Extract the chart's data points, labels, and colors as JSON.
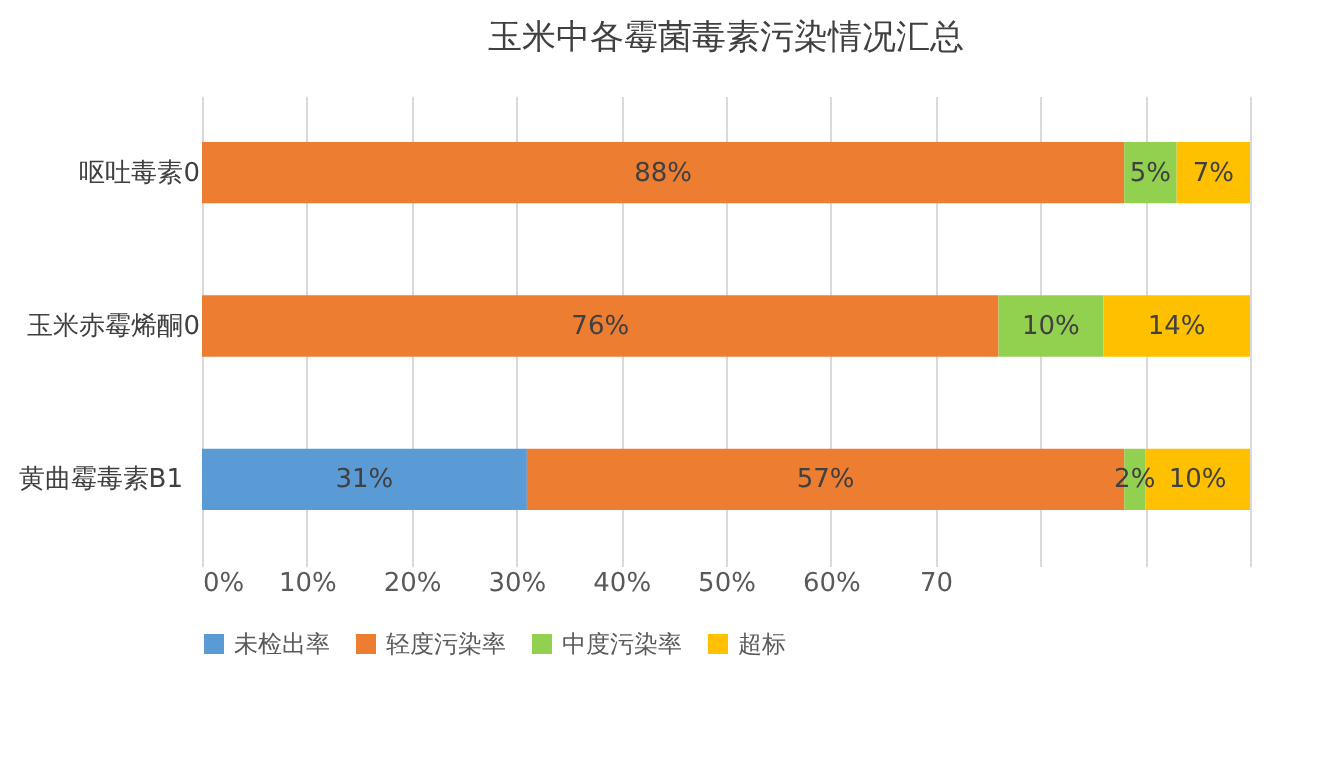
{
  "chart_data": {
    "type": "bar",
    "orientation": "horizontal",
    "stacked": true,
    "title": "玉米中各霉菌毒素污染情况汇总",
    "categories": [
      "呕吐毒素",
      "玉米赤霉烯酮",
      "黄曲霉毒素B1"
    ],
    "series": [
      {
        "name": "未检出率",
        "color": "#5b9bd5",
        "values": [
          0,
          0,
          31
        ],
        "value_labels": [
          null,
          null,
          "31%"
        ]
      },
      {
        "name": "轻度污染率",
        "color": "#ed7d31",
        "values": [
          88,
          76,
          57
        ],
        "value_labels": [
          "88%",
          "76%",
          "57%"
        ]
      },
      {
        "name": "中度污染率",
        "color": "#92d050",
        "values": [
          5,
          10,
          2
        ],
        "value_labels": [
          "5%",
          "10%",
          "2%"
        ]
      },
      {
        "name": "超标",
        "color": "#ffc000",
        "values": [
          7,
          14,
          10
        ],
        "value_labels": [
          "7%",
          "14%",
          "10%"
        ]
      }
    ],
    "xlim": [
      0,
      100
    ],
    "xticks": [
      {
        "value": 0,
        "label": "0%"
      },
      {
        "value": 10,
        "label": "10%"
      },
      {
        "value": 20,
        "label": "20%"
      },
      {
        "value": 30,
        "label": "30%"
      },
      {
        "value": 40,
        "label": "40%"
      },
      {
        "value": 50,
        "label": "50%"
      },
      {
        "value": 60,
        "label": "60%"
      },
      {
        "value": 70,
        "label": "70"
      },
      {
        "value": 80,
        "label": null
      },
      {
        "value": 90,
        "label": null
      },
      {
        "value": 100,
        "label": null
      }
    ],
    "annotations": [
      {
        "text": "0",
        "x": 0,
        "y": "呕吐毒素"
      },
      {
        "text": "0",
        "x": 0,
        "y": "玉米赤霉烯酮"
      }
    ],
    "grid": "x",
    "legend": "bottom"
  }
}
